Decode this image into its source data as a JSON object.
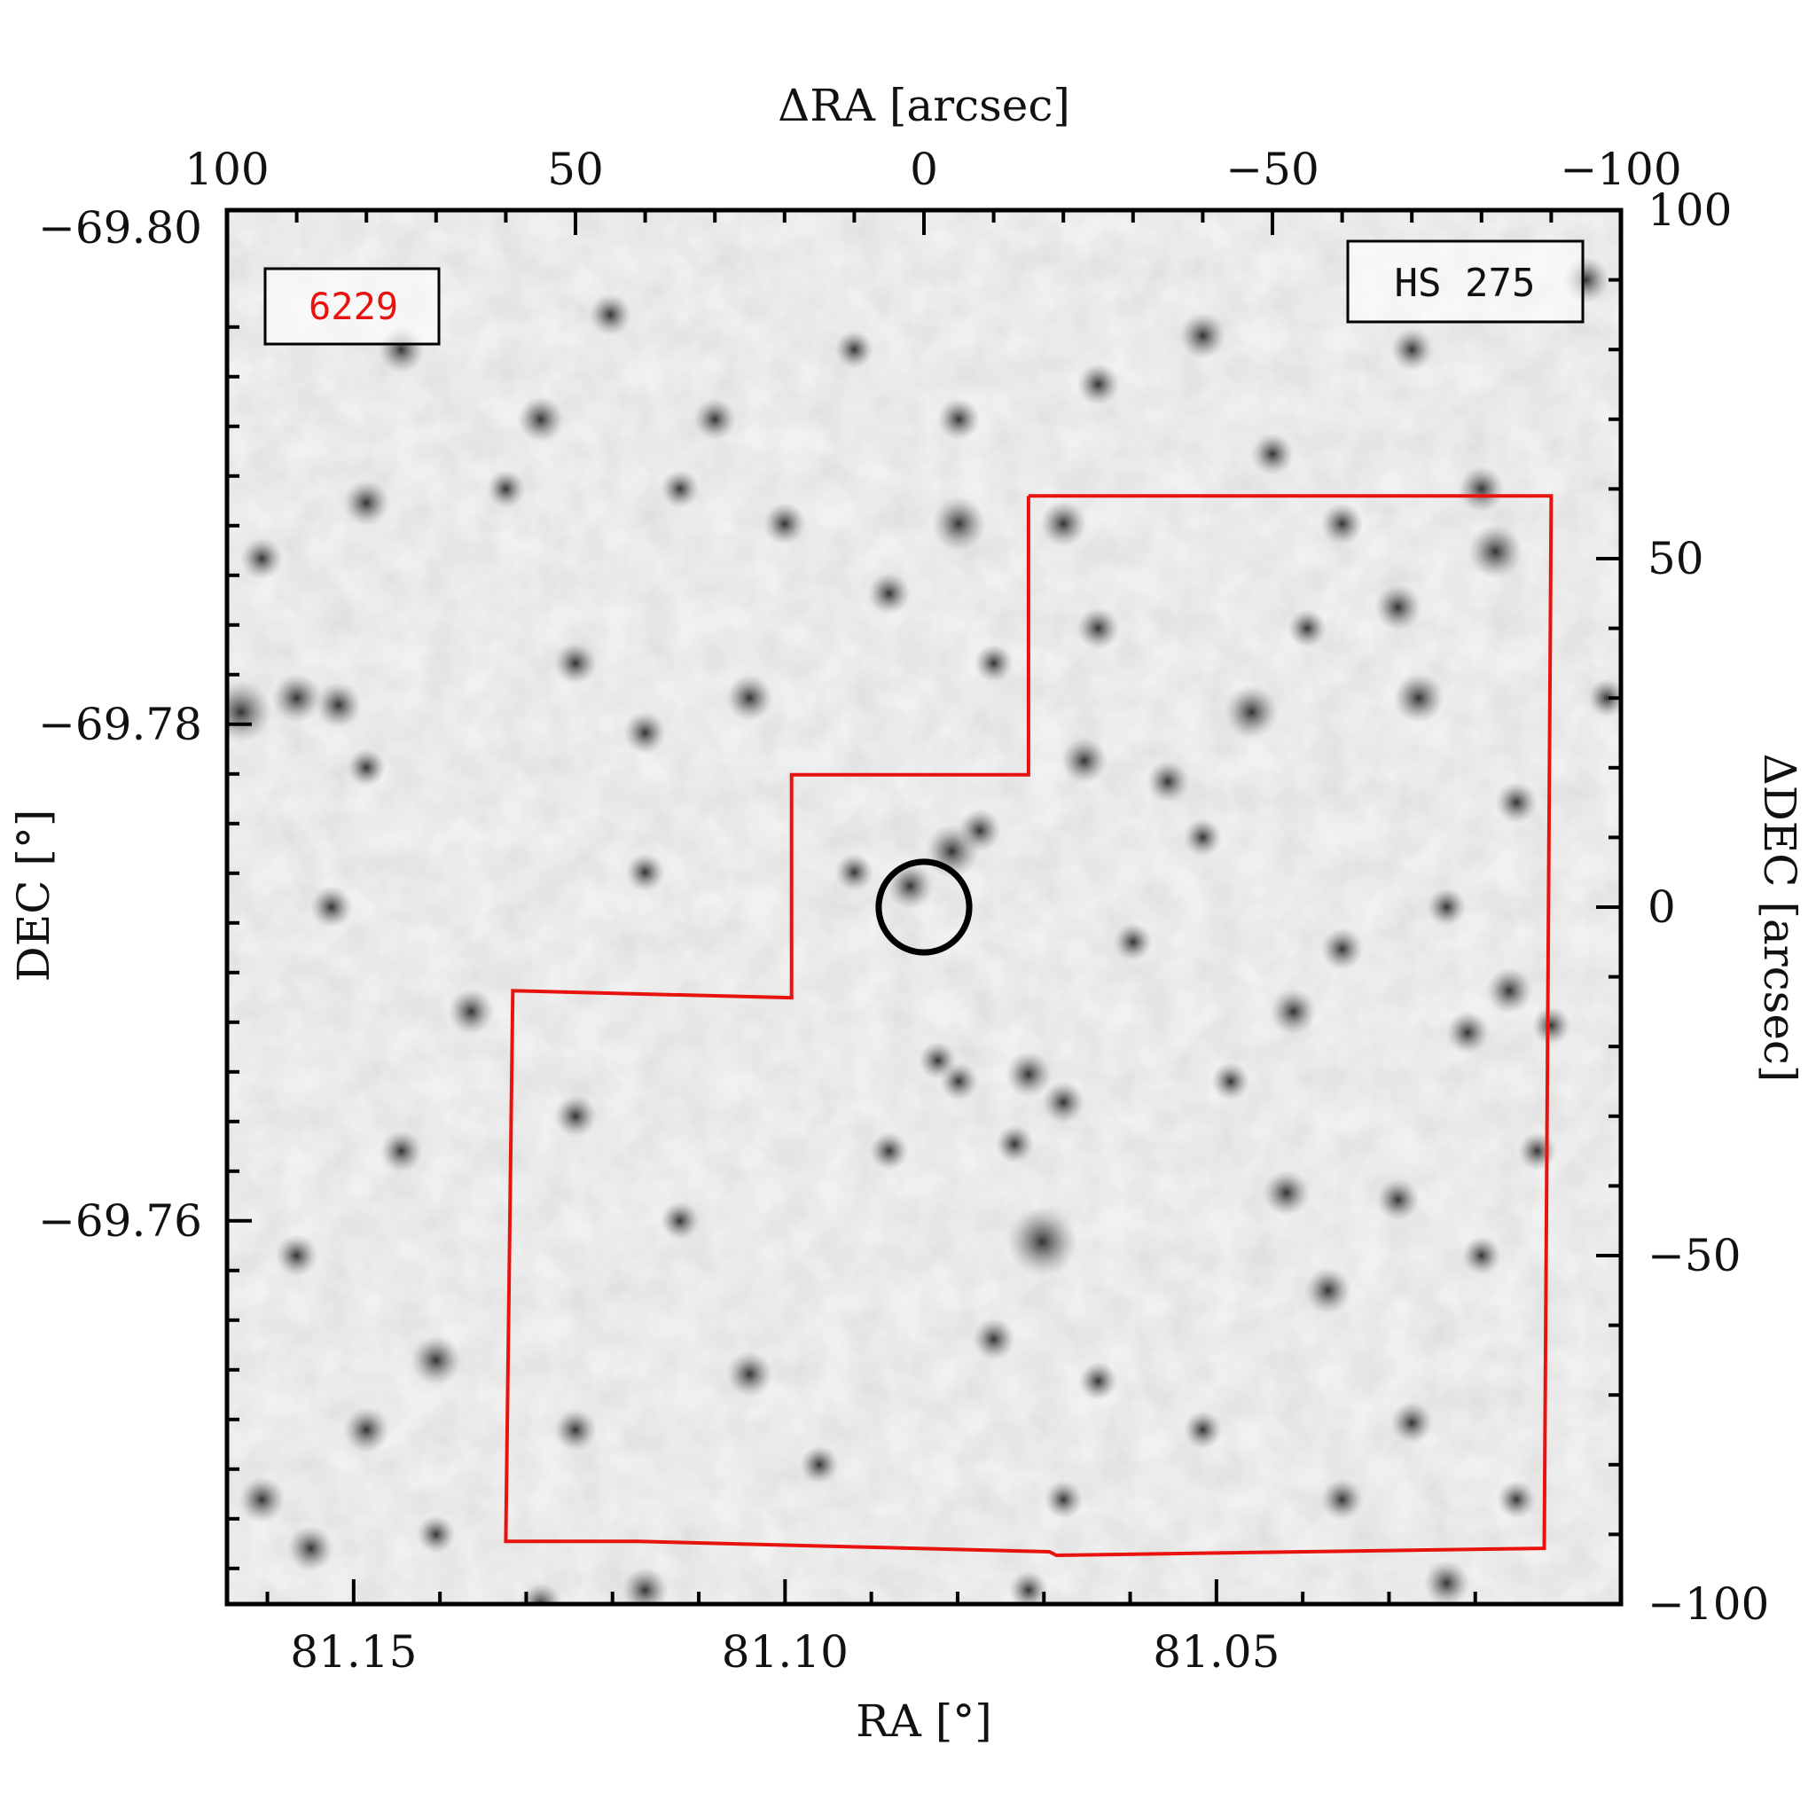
{
  "chart_data": {
    "type": "scatter",
    "image": "grayscale stellar field with overlaid footprint outline and target circle",
    "top_axis": {
      "label": "ΔRA [arcsec]",
      "ticks": [
        {
          "value": 100,
          "label": "100"
        },
        {
          "value": 50,
          "label": "50"
        },
        {
          "value": 0,
          "label": "0"
        },
        {
          "value": -50,
          "label": "−50"
        },
        {
          "value": -100,
          "label": "−100"
        }
      ],
      "range": [
        100,
        -100
      ]
    },
    "right_axis": {
      "label": "ΔDEC [arcsec]",
      "ticks": [
        {
          "value": 100,
          "label": "100"
        },
        {
          "value": 50,
          "label": "50"
        },
        {
          "value": 0,
          "label": "0"
        },
        {
          "value": -50,
          "label": "−50"
        },
        {
          "value": -100,
          "label": "−100"
        }
      ],
      "range": [
        -100,
        100
      ]
    },
    "bottom_axis": {
      "label": "RA [°]",
      "ticks": [
        {
          "value": 81.15,
          "label": "81.15"
        },
        {
          "value": 81.1,
          "label": "81.10"
        },
        {
          "value": 81.05,
          "label": "81.05"
        }
      ]
    },
    "left_axis": {
      "label": "DEC [°]",
      "ticks": [
        {
          "value": -69.76,
          "label": "−69.76"
        },
        {
          "value": -69.78,
          "label": "−69.78"
        },
        {
          "value": -69.8,
          "label": "−69.80"
        }
      ]
    },
    "labels": {
      "id_box": "6229",
      "name_box": "HS 275"
    },
    "target_circle": {
      "dra": 0,
      "ddec": 0,
      "radius": 6.5
    },
    "footprint": [
      [
        -15,
        59
      ],
      [
        -90,
        59
      ],
      [
        -89,
        -92
      ],
      [
        -19,
        -93
      ],
      [
        -18,
        -92.5
      ],
      [
        41,
        -91
      ],
      [
        60,
        -91
      ],
      [
        59,
        -12
      ],
      [
        19,
        -13
      ],
      [
        19,
        19
      ],
      [
        -15,
        19
      ],
      [
        -15,
        59
      ]
    ],
    "stars": [
      [
        -5,
        55,
        14
      ],
      [
        -23,
        21,
        12
      ],
      [
        -8,
        11,
        11
      ],
      [
        -17,
        -48,
        18
      ],
      [
        -53,
        -15,
        12
      ],
      [
        -71,
        30,
        13
      ],
      [
        -82,
        51,
        14
      ],
      [
        -68,
        43,
        12
      ],
      [
        -47,
        28,
        14
      ],
      [
        -52,
        -41,
        12
      ],
      [
        -58,
        -55,
        12
      ],
      [
        -35,
        18,
        11
      ],
      [
        -15,
        -24,
        12
      ],
      [
        -20,
        -28,
        11
      ],
      [
        -13,
        -34,
        10
      ],
      [
        -84,
        -12,
        12
      ],
      [
        -90,
        -17,
        10
      ],
      [
        -68,
        -42,
        11
      ],
      [
        -30,
        -5,
        10
      ],
      [
        -40,
        10,
        10
      ],
      [
        -75,
        0,
        10
      ],
      [
        -60,
        -6,
        11
      ],
      [
        -10,
        -62,
        11
      ],
      [
        -25,
        -68,
        10
      ],
      [
        -40,
        -75,
        10
      ],
      [
        -70,
        -74,
        11
      ],
      [
        -85,
        -85,
        10
      ],
      [
        -60,
        -85,
        11
      ],
      [
        -20,
        -85,
        10
      ],
      [
        25,
        -67,
        12
      ],
      [
        50,
        -75,
        11
      ],
      [
        35,
        -45,
        10
      ],
      [
        50,
        -30,
        11
      ],
      [
        5,
        -35,
        10
      ],
      [
        -5,
        -25,
        10
      ],
      [
        -10,
        35,
        10
      ],
      [
        -25,
        40,
        11
      ],
      [
        -55,
        40,
        10
      ],
      [
        -60,
        55,
        11
      ],
      [
        -80,
        60,
        12
      ],
      [
        5,
        45,
        11
      ],
      [
        25,
        30,
        12
      ],
      [
        40,
        25,
        11
      ],
      [
        40,
        5,
        10
      ],
      [
        10,
        5,
        10
      ],
      [
        20,
        55,
        11
      ],
      [
        35,
        60,
        10
      ],
      [
        50,
        35,
        11
      ],
      [
        -2,
        -22,
        10
      ],
      [
        -44,
        -25,
        10
      ],
      [
        -80,
        -50,
        10
      ],
      [
        -88,
        -35,
        10
      ],
      [
        15,
        -80,
        10
      ],
      [
        -4,
        8,
        14
      ],
      [
        2,
        3,
        12
      ],
      [
        85,
        0,
        11
      ],
      [
        90,
        30,
        13
      ],
      [
        80,
        20,
        10
      ],
      [
        55,
        70,
        12
      ],
      [
        75,
        80,
        12
      ],
      [
        45,
        85,
        11
      ],
      [
        10,
        80,
        10
      ],
      [
        -25,
        75,
        11
      ],
      [
        -40,
        82,
        12
      ],
      [
        -70,
        80,
        11
      ],
      [
        -95,
        90,
        12
      ],
      [
        95,
        50,
        11
      ],
      [
        80,
        58,
        12
      ],
      [
        60,
        60,
        10
      ],
      [
        30,
        70,
        11
      ],
      [
        -5,
        70,
        11
      ],
      [
        -20,
        55,
        12
      ],
      [
        65,
        -15,
        12
      ],
      [
        75,
        -35,
        11
      ],
      [
        90,
        -50,
        11
      ],
      [
        70,
        -65,
        13
      ],
      [
        80,
        -75,
        12
      ],
      [
        88,
        -92,
        12
      ],
      [
        70,
        -90,
        10
      ],
      [
        40,
        -98,
        12
      ],
      [
        95,
        -85,
        12
      ],
      [
        55,
        -100,
        11
      ],
      [
        -15,
        -98,
        10
      ],
      [
        -75,
        -97,
        12
      ],
      [
        -98,
        30,
        10
      ],
      [
        98,
        28,
        16
      ],
      [
        84,
        29,
        12
      ],
      [
        -50,
        65,
        11
      ],
      [
        -85,
        15,
        11
      ],
      [
        -78,
        -18,
        11
      ]
    ]
  }
}
